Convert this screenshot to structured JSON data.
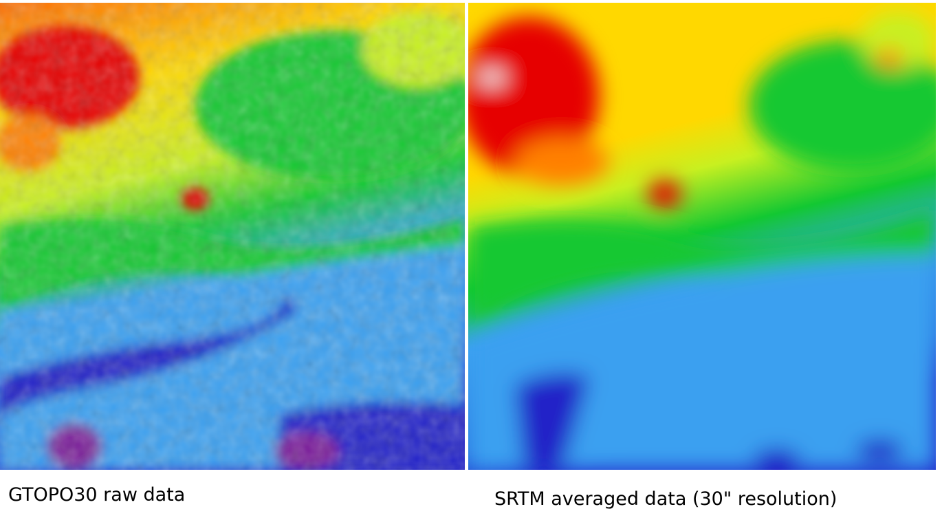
{
  "panels": [
    {
      "caption": "GTOPO30 raw data",
      "colormap": [
        "#7a1f9a",
        "#2020c8",
        "#3aa0f0",
        "#12c832",
        "#c8f020",
        "#ffd800",
        "#ff8000",
        "#e60000",
        "#f4f4f4"
      ]
    },
    {
      "caption": "SRTM averaged data (30\" resolution)",
      "colormap": [
        "#7a1f9a",
        "#2020c8",
        "#3aa0f0",
        "#12c832",
        "#c8f020",
        "#ffd800",
        "#ff8000",
        "#e60000",
        "#f4f4f4"
      ]
    }
  ]
}
